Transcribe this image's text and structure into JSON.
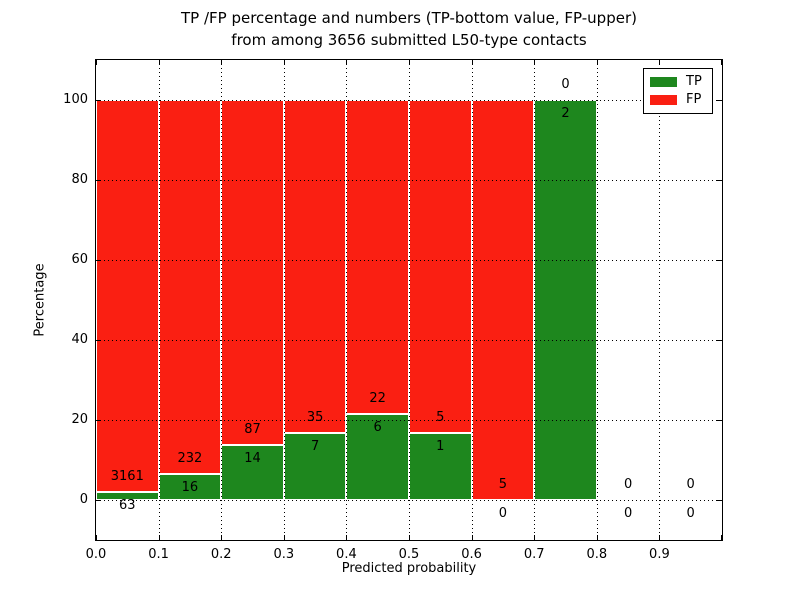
{
  "chart_data": {
    "type": "bar",
    "stacked": true,
    "title_lines": [
      "TP /FP percentage and numbers (TP-bottom value, FP-upper)",
      "from among 3656 submitted L50-type contacts"
    ],
    "title": "TP /FP percentage and numbers (TP-bottom value, FP-upper) from among 3656 submitted L50-type contacts",
    "xlabel": "Predicted probability",
    "ylabel": "Percentage",
    "xlim": [
      0.0,
      1.0
    ],
    "ylim": [
      -10,
      110
    ],
    "grid": "dotted",
    "total_contacts": 3656,
    "x_ticks": [
      {
        "value": 0.0,
        "label": "0.0"
      },
      {
        "value": 0.1,
        "label": "0.1"
      },
      {
        "value": 0.2,
        "label": "0.2"
      },
      {
        "value": 0.3,
        "label": "0.3"
      },
      {
        "value": 0.4,
        "label": "0.4"
      },
      {
        "value": 0.5,
        "label": "0.5"
      },
      {
        "value": 0.6,
        "label": "0.6"
      },
      {
        "value": 0.7,
        "label": "0.7"
      },
      {
        "value": 0.8,
        "label": "0.8"
      },
      {
        "value": 0.9,
        "label": "0.9"
      },
      {
        "value": 1.0,
        "label": ""
      }
    ],
    "y_ticks": [
      {
        "value": 0,
        "label": "0"
      },
      {
        "value": 20,
        "label": "20"
      },
      {
        "value": 40,
        "label": "40"
      },
      {
        "value": 60,
        "label": "60"
      },
      {
        "value": 80,
        "label": "80"
      },
      {
        "value": 100,
        "label": "100"
      }
    ],
    "series": [
      {
        "name": "TP",
        "color": "#1e871e",
        "counts": [
          63,
          16,
          14,
          7,
          6,
          1,
          0,
          2,
          0,
          0
        ]
      },
      {
        "name": "FP",
        "color": "#fa1f12",
        "counts": [
          3161,
          232,
          87,
          35,
          22,
          5,
          5,
          0,
          0,
          0
        ]
      }
    ],
    "bins": [
      {
        "x0": 0.0,
        "x1": 0.1,
        "tp": 63,
        "fp": 3161,
        "tp_pct": 1.95,
        "fp_pct": 98.05
      },
      {
        "x0": 0.1,
        "x1": 0.2,
        "tp": 16,
        "fp": 232,
        "tp_pct": 6.45,
        "fp_pct": 93.55
      },
      {
        "x0": 0.2,
        "x1": 0.3,
        "tp": 14,
        "fp": 87,
        "tp_pct": 13.86,
        "fp_pct": 86.14
      },
      {
        "x0": 0.3,
        "x1": 0.4,
        "tp": 7,
        "fp": 35,
        "tp_pct": 16.67,
        "fp_pct": 83.33
      },
      {
        "x0": 0.4,
        "x1": 0.5,
        "tp": 6,
        "fp": 22,
        "tp_pct": 21.43,
        "fp_pct": 78.57
      },
      {
        "x0": 0.5,
        "x1": 0.6,
        "tp": 1,
        "fp": 5,
        "tp_pct": 16.67,
        "fp_pct": 83.33
      },
      {
        "x0": 0.6,
        "x1": 0.7,
        "tp": 0,
        "fp": 5,
        "tp_pct": 0,
        "fp_pct": 100
      },
      {
        "x0": 0.7,
        "x1": 0.8,
        "tp": 2,
        "fp": 0,
        "tp_pct": 100,
        "fp_pct": 0
      },
      {
        "x0": 0.8,
        "x1": 0.9,
        "tp": 0,
        "fp": 0,
        "tp_pct": null,
        "fp_pct": null
      },
      {
        "x0": 0.9,
        "x1": 1.0,
        "tp": 0,
        "fp": 0,
        "tp_pct": null,
        "fp_pct": null
      }
    ],
    "legend": {
      "position": "upper right",
      "entries": [
        {
          "label": "TP",
          "color": "#1e871e"
        },
        {
          "label": "FP",
          "color": "#fa1f12"
        }
      ]
    },
    "colors": {
      "tp": "#1e871e",
      "fp": "#fa1f12",
      "grid": "#000000",
      "background": "#ffffff"
    }
  }
}
